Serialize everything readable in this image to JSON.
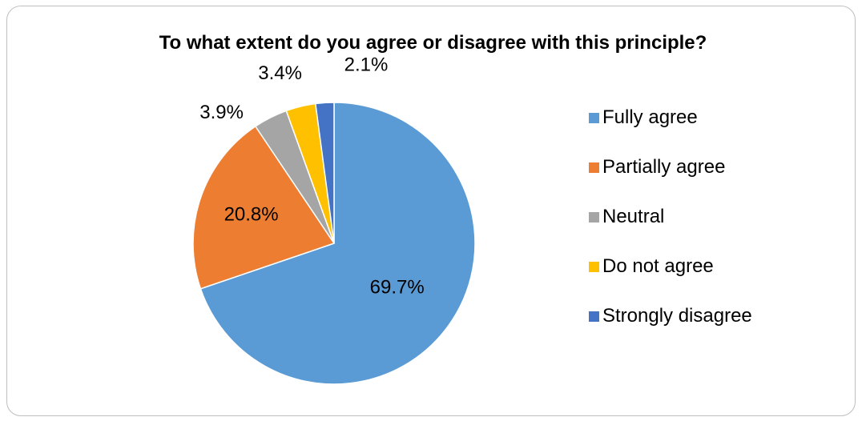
{
  "chart_data": {
    "type": "pie",
    "title": "To what extent do you agree or disagree with this principle?",
    "categories": [
      "Fully agree",
      "Partially agree",
      "Neutral",
      "Do not agree",
      "Strongly disagree"
    ],
    "values": [
      69.7,
      20.8,
      3.9,
      3.4,
      2.1
    ],
    "data_labels": [
      "69.7%",
      "20.8%",
      "3.9%",
      "3.4%",
      "2.1%"
    ],
    "colors": [
      "#5b9bd5",
      "#ed7d31",
      "#a5a5a5",
      "#ffc000",
      "#4472c4"
    ],
    "legend_position": "right"
  }
}
